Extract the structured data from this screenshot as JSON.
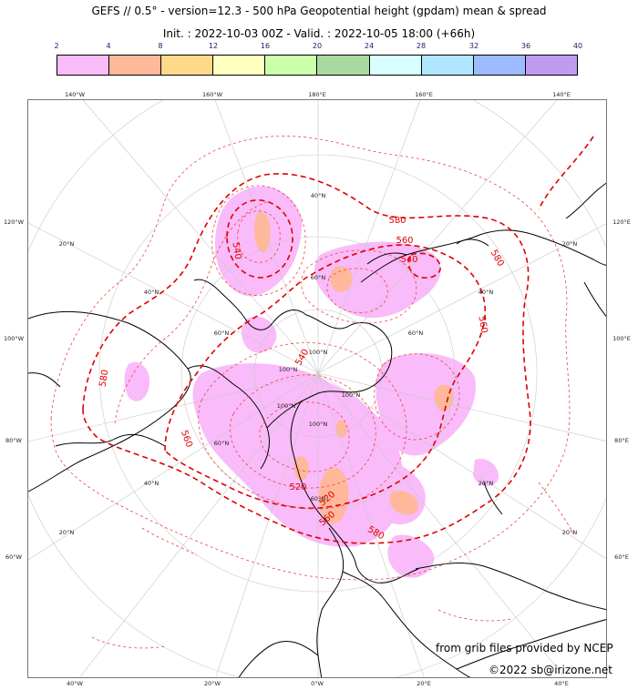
{
  "header": {
    "title_line1": "GEFS // 0.5° - version=12.3 - 500 hPa Geopotential height (gpdam) mean & spread",
    "title_line2": "Init. : 2022-10-03 00Z - Valid. : 2022-10-05 18:00 (+66h)"
  },
  "colorbar": {
    "ticks": [
      "2",
      "4",
      "8",
      "12",
      "16",
      "20",
      "24",
      "28",
      "32",
      "36",
      "40"
    ],
    "colors": [
      "#f9bbf9",
      "#ffb89a",
      "#ffd98a",
      "#ffffc0",
      "#ccffaa",
      "#aad9a0",
      "#d8ffff",
      "#b0e6ff",
      "#9cbcff",
      "#c09cf0"
    ]
  },
  "map": {
    "top_labels": [
      "140°W",
      "160°W",
      "180°E",
      "160°E",
      "140°E"
    ],
    "bottom_labels": [
      "40°W",
      "20°W",
      "0°W",
      "20°E",
      "40°E"
    ],
    "left_labels": [
      "120°W",
      "100°W",
      "80°W",
      "60°W"
    ],
    "right_labels": [
      "120°E",
      "100°E",
      "80°E",
      "60°E"
    ],
    "interior_lat_labels": [
      "20°N",
      "40°N",
      "60°N",
      "100°N",
      "100°N",
      "100°N",
      "100°N",
      "100°N",
      "60°N",
      "60°N",
      "60°N",
      "60°N",
      "40°N",
      "40°N",
      "40°N",
      "20°N",
      "20°N",
      "20°N",
      "20°N"
    ],
    "contour_labels": [
      "540",
      "580",
      "560",
      "540",
      "540",
      "580",
      "560",
      "580",
      "560",
      "520",
      "580",
      "560",
      "520"
    ],
    "colors": {
      "mean_contour": "#e00000",
      "spread_low": "#f9bbf9",
      "spread_mid": "#ffb89a",
      "coastline": "#000000",
      "graticule": "#c8c8c8"
    }
  },
  "credits": {
    "source": "from grib files provided by NCEP",
    "copyright": "©2022 sb@irizone.net"
  }
}
